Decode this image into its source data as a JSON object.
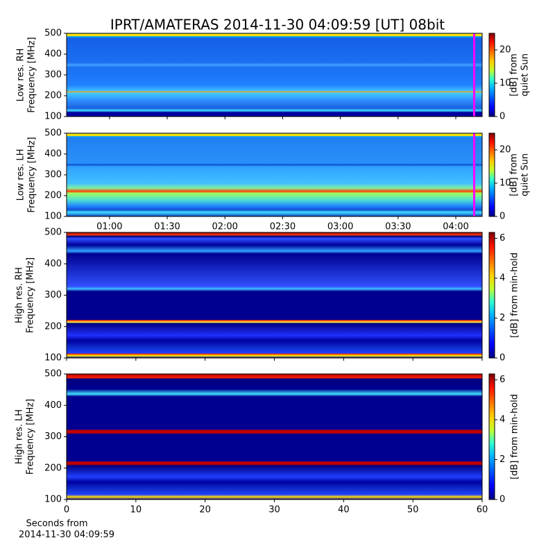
{
  "chart_data": [
    {
      "type": "heatmap",
      "title": "IPRT/AMATERAS 2014-11-30 04:09:59 [UT]   08bit",
      "ylabel": [
        "Low res. RH",
        "Frequency [MHz]"
      ],
      "ylim": [
        100,
        500
      ],
      "yticks": [
        100,
        200,
        300,
        400,
        500
      ],
      "xlim": [
        37.7,
        253.7
      ],
      "xticks": [
        60,
        90,
        120,
        150,
        180,
        210,
        240
      ],
      "xticklabels": false,
      "colorbar": {
        "clim": [
          0,
          25
        ],
        "ticks": [
          0,
          10,
          20
        ],
        "label": [
          "[dB] from",
          "quiet Sun"
        ]
      }
    },
    {
      "type": "heatmap",
      "ylabel": [
        "Low res. LH",
        "Frequency [MHz]"
      ],
      "ylim": [
        100,
        500
      ],
      "yticks": [
        100,
        200,
        300,
        400,
        500
      ],
      "xlim": [
        37.7,
        253.7
      ],
      "xticks": [
        {
          "value": 60,
          "label": "01:00"
        },
        {
          "value": 90,
          "label": "01:30"
        },
        {
          "value": 120,
          "label": "02:00"
        },
        {
          "value": 150,
          "label": "02:30"
        },
        {
          "value": 180,
          "label": "03:00"
        },
        {
          "value": 210,
          "label": "03:30"
        },
        {
          "value": 240,
          "label": "04:00"
        }
      ],
      "colorbar": {
        "clim": [
          0,
          25
        ],
        "ticks": [
          0,
          10,
          20
        ],
        "label": [
          "[dB] from",
          "quiet Sun"
        ]
      }
    },
    {
      "type": "heatmap",
      "ylabel": [
        "High res. RH",
        "Frequency [MHz]"
      ],
      "ylim": [
        100,
        500
      ],
      "yticks": [
        100,
        200,
        300,
        400,
        500
      ],
      "xlim": [
        0,
        60
      ],
      "xticks": [
        0,
        10,
        20,
        30,
        40,
        50,
        60
      ],
      "xticklabels": false,
      "colorbar": {
        "clim": [
          0,
          6.3
        ],
        "ticks": [
          0,
          2,
          4,
          6
        ],
        "label": [
          "[dB] from min-hold"
        ]
      }
    },
    {
      "type": "heatmap",
      "ylabel": [
        "High res. LH",
        "Frequency [MHz]"
      ],
      "ylim": [
        100,
        500
      ],
      "yticks": [
        100,
        200,
        300,
        400,
        500
      ],
      "xlim": [
        0,
        60
      ],
      "xticks": [
        0,
        10,
        20,
        30,
        40,
        50,
        60
      ],
      "xlabel": [
        "Seconds from",
        "2014-11-30 04:09:59"
      ],
      "colorbar": {
        "clim": [
          0,
          6.3
        ],
        "ticks": [
          0,
          2,
          4,
          6
        ],
        "label": [
          "[dB] from min-hold"
        ]
      }
    }
  ]
}
